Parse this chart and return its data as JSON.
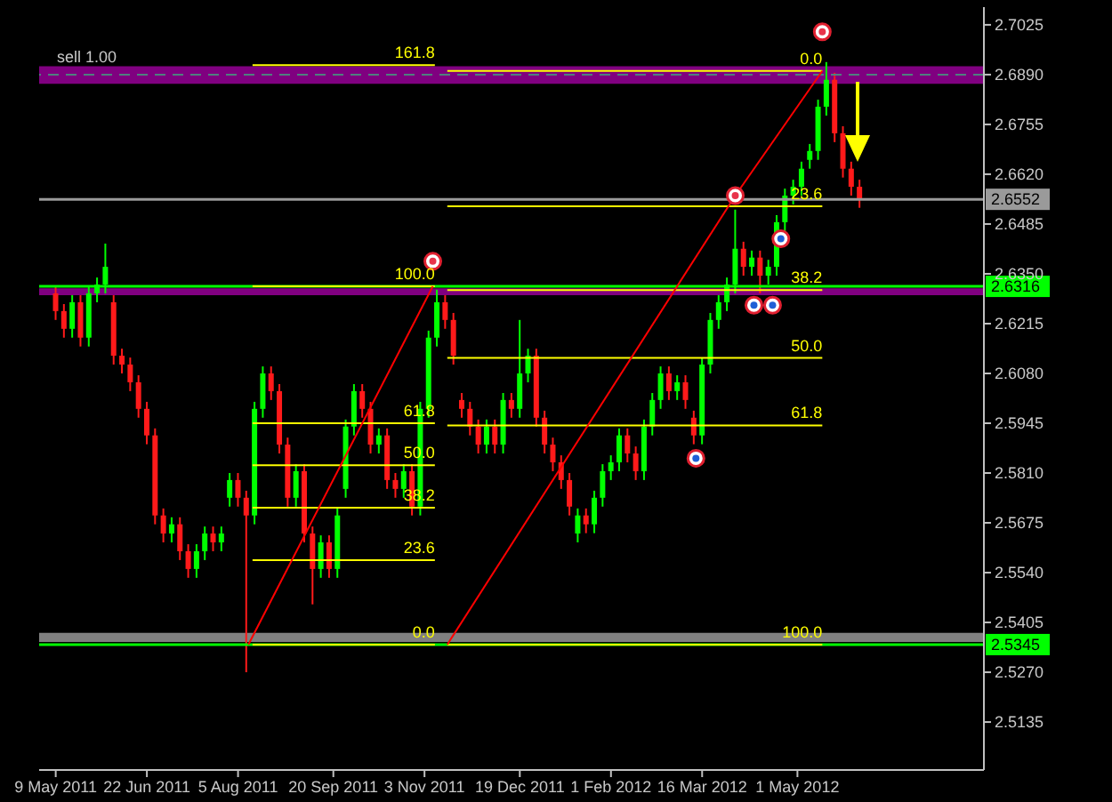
{
  "chart_data": {
    "type": "candlestick",
    "grid": false,
    "legend": false,
    "x": [
      "2011-05-09",
      "2011-05-13",
      "2011-05-17",
      "2011-05-21",
      "2011-05-25",
      "2011-05-29",
      "2011-06-02",
      "2011-06-06",
      "2011-06-10",
      "2011-06-14",
      "2011-06-18",
      "2011-06-22",
      "2011-06-26",
      "2011-06-30",
      "2011-07-04",
      "2011-07-08",
      "2011-07-12",
      "2011-07-16",
      "2011-07-20",
      "2011-07-24",
      "2011-07-28",
      "2011-08-01",
      "2011-08-05",
      "2011-08-09",
      "2011-08-13",
      "2011-08-17",
      "2011-08-21",
      "2011-08-25",
      "2011-08-29",
      "2011-09-02",
      "2011-09-06",
      "2011-09-10",
      "2011-09-14",
      "2011-09-18",
      "2011-09-22",
      "2011-09-26",
      "2011-09-30",
      "2011-10-04",
      "2011-10-08",
      "2011-10-12",
      "2011-10-16",
      "2011-10-20",
      "2011-10-24",
      "2011-10-28",
      "2011-11-01",
      "2011-11-05",
      "2011-11-09",
      "2011-11-13",
      "2011-11-17",
      "2011-11-21",
      "2011-11-25",
      "2011-11-29",
      "2011-12-03",
      "2011-12-07",
      "2011-12-11",
      "2011-12-15",
      "2011-12-19",
      "2011-12-23",
      "2011-12-27",
      "2011-12-31",
      "2012-01-04",
      "2012-01-08",
      "2012-01-12",
      "2012-01-16",
      "2012-01-20",
      "2012-01-24",
      "2012-01-28",
      "2012-02-01",
      "2012-02-05",
      "2012-02-09",
      "2012-02-13",
      "2012-02-17",
      "2012-02-21",
      "2012-02-25",
      "2012-02-29",
      "2012-03-04",
      "2012-03-08",
      "2012-03-12",
      "2012-03-16",
      "2012-03-20",
      "2012-03-24",
      "2012-03-28",
      "2012-04-01",
      "2012-04-05",
      "2012-04-09",
      "2012-04-13",
      "2012-04-17",
      "2012-04-21",
      "2012-04-25",
      "2012-04-29",
      "2012-05-03",
      "2012-05-07",
      "2012-05-11",
      "2012-05-15",
      "2012-05-19",
      "2012-05-23",
      "2012-05-27",
      "2012-05-31"
    ],
    "ohlc": [
      [
        2.6297,
        2.6316,
        2.6225,
        2.6249
      ],
      [
        2.6249,
        2.6268,
        2.6177,
        2.6201
      ],
      [
        2.6201,
        2.6292,
        2.6177,
        2.6273
      ],
      [
        2.6273,
        2.6292,
        2.6153,
        2.6177
      ],
      [
        2.6177,
        2.6316,
        2.6153,
        2.6297
      ],
      [
        2.6297,
        2.634,
        2.6273,
        2.6321
      ],
      [
        2.6321,
        2.6432,
        2.6297,
        2.6369
      ],
      [
        2.6273,
        2.6292,
        2.6104,
        2.6128
      ],
      [
        2.6128,
        2.6147,
        2.608,
        2.6104
      ],
      [
        2.6104,
        2.6123,
        2.6032,
        2.6056
      ],
      [
        2.6056,
        2.6075,
        2.596,
        2.5984
      ],
      [
        2.5984,
        2.6003,
        2.5888,
        2.5912
      ],
      [
        2.5912,
        2.5931,
        2.5671,
        2.5695
      ],
      [
        2.5695,
        2.5714,
        2.5622,
        2.5646
      ],
      [
        2.5646,
        2.569,
        2.5622,
        2.5671
      ],
      [
        2.5671,
        2.569,
        2.5574,
        2.5598
      ],
      [
        2.5598,
        2.5617,
        2.5526,
        2.555
      ],
      [
        2.555,
        2.5617,
        2.5526,
        2.5598
      ],
      [
        2.5598,
        2.5665,
        2.5574,
        2.5646
      ],
      [
        2.5646,
        2.5665,
        2.5598,
        2.5622
      ],
      [
        2.5622,
        2.5665,
        2.5598,
        2.5646
      ],
      [
        2.5743,
        2.581,
        2.5719,
        2.5791
      ],
      [
        2.5791,
        2.581,
        2.5719,
        2.5743
      ],
      [
        2.5743,
        2.5762,
        2.527,
        2.5695
      ],
      [
        2.5695,
        2.6003,
        2.5671,
        2.5984
      ],
      [
        2.5984,
        2.6099,
        2.596,
        2.608
      ],
      [
        2.608,
        2.6099,
        2.6008,
        2.6032
      ],
      [
        2.6032,
        2.6051,
        2.5863,
        2.5887
      ],
      [
        2.5887,
        2.5906,
        2.5719,
        2.5743
      ],
      [
        2.5743,
        2.5834,
        2.5719,
        2.5815
      ],
      [
        2.5815,
        2.5834,
        2.5622,
        2.5646
      ],
      [
        2.5646,
        2.5665,
        2.5454,
        2.555
      ],
      [
        2.555,
        2.5641,
        2.5526,
        2.5622
      ],
      [
        2.5622,
        2.5641,
        2.5526,
        2.555
      ],
      [
        2.555,
        2.5714,
        2.5526,
        2.5695
      ],
      [
        2.5767,
        2.5955,
        2.5743,
        2.5936
      ],
      [
        2.5936,
        2.6051,
        2.5912,
        2.6032
      ],
      [
        2.6032,
        2.6051,
        2.596,
        2.5984
      ],
      [
        2.5984,
        2.6003,
        2.5863,
        2.5887
      ],
      [
        2.5887,
        2.5931,
        2.5863,
        2.5912
      ],
      [
        2.5912,
        2.5931,
        2.5767,
        2.5791
      ],
      [
        2.5791,
        2.581,
        2.5743,
        2.5767
      ],
      [
        2.5767,
        2.5834,
        2.5743,
        2.5815
      ],
      [
        2.5815,
        2.5834,
        2.5695,
        2.5719
      ],
      [
        2.5719,
        2.6003,
        2.5695,
        2.5984
      ],
      [
        2.5984,
        2.6196,
        2.596,
        2.6177
      ],
      [
        2.6177,
        2.6307,
        2.6153,
        2.6273
      ],
      [
        2.6273,
        2.6292,
        2.6201,
        2.6225
      ],
      [
        2.6225,
        2.6244,
        2.6104,
        2.6128
      ],
      [
        2.6008,
        2.6027,
        2.596,
        2.5984
      ],
      [
        2.5984,
        2.6003,
        2.5912,
        2.5936
      ],
      [
        2.5936,
        2.5955,
        2.5863,
        2.5887
      ],
      [
        2.5887,
        2.5955,
        2.5863,
        2.5936
      ],
      [
        2.5936,
        2.5955,
        2.5863,
        2.5887
      ],
      [
        2.5887,
        2.6027,
        2.5863,
        2.6008
      ],
      [
        2.6008,
        2.6027,
        2.596,
        2.5984
      ],
      [
        2.5984,
        2.6225,
        2.596,
        2.608
      ],
      [
        2.608,
        2.6147,
        2.6056,
        2.6128
      ],
      [
        2.6128,
        2.6147,
        2.5936,
        2.596
      ],
      [
        2.596,
        2.5979,
        2.5863,
        2.5887
      ],
      [
        2.5887,
        2.5906,
        2.5815,
        2.5839
      ],
      [
        2.5839,
        2.5858,
        2.5767,
        2.5791
      ],
      [
        2.5791,
        2.581,
        2.5695,
        2.5719
      ],
      [
        2.5646,
        2.5714,
        2.5622,
        2.5695
      ],
      [
        2.5695,
        2.5714,
        2.5647,
        2.5671
      ],
      [
        2.5671,
        2.5762,
        2.5647,
        2.5743
      ],
      [
        2.5743,
        2.5834,
        2.5719,
        2.5815
      ],
      [
        2.5815,
        2.5858,
        2.5791,
        2.5839
      ],
      [
        2.5839,
        2.5931,
        2.5815,
        2.5912
      ],
      [
        2.5912,
        2.5931,
        2.5839,
        2.5863
      ],
      [
        2.5863,
        2.5882,
        2.5791,
        2.5815
      ],
      [
        2.5815,
        2.5955,
        2.5791,
        2.5936
      ],
      [
        2.5936,
        2.6027,
        2.5912,
        2.6008
      ],
      [
        2.6008,
        2.6099,
        2.5984,
        2.608
      ],
      [
        2.608,
        2.6099,
        2.6008,
        2.6032
      ],
      [
        2.6032,
        2.6075,
        2.6008,
        2.6056
      ],
      [
        2.6056,
        2.6075,
        2.5984,
        2.6008
      ],
      [
        2.596,
        2.5979,
        2.5888,
        2.5912
      ],
      [
        2.5912,
        2.6123,
        2.5888,
        2.6104
      ],
      [
        2.6104,
        2.6244,
        2.608,
        2.6225
      ],
      [
        2.6225,
        2.6292,
        2.6201,
        2.6273
      ],
      [
        2.6273,
        2.634,
        2.6249,
        2.6321
      ],
      [
        2.6321,
        2.6524,
        2.6297,
        2.6418
      ],
      [
        2.6418,
        2.6437,
        2.6345,
        2.6369
      ],
      [
        2.6369,
        2.6413,
        2.6345,
        2.6394
      ],
      [
        2.6394,
        2.6413,
        2.6297,
        2.6345
      ],
      [
        2.6345,
        2.6388,
        2.6321,
        2.6369
      ],
      [
        2.6369,
        2.6509,
        2.6345,
        2.649
      ],
      [
        2.649,
        2.6581,
        2.6466,
        2.6562
      ],
      [
        2.6562,
        2.6605,
        2.6538,
        2.6586
      ],
      [
        2.6586,
        2.6654,
        2.6562,
        2.6635
      ],
      [
        2.6659,
        2.6702,
        2.6635,
        2.6683
      ],
      [
        2.6683,
        2.6822,
        2.6659,
        2.6803
      ],
      [
        2.6803,
        2.6924,
        2.6779,
        2.6876
      ],
      [
        2.6876,
        2.6895,
        2.6707,
        2.6731
      ],
      [
        2.6731,
        2.675,
        2.6611,
        2.6635
      ],
      [
        2.6635,
        2.6654,
        2.6562,
        2.6586
      ],
      [
        2.6586,
        2.6605,
        2.6529,
        2.6553
      ]
    ],
    "xlim": [
      "2011-05-01",
      "2012-07-30"
    ],
    "xticks": [
      {
        "value": "2011-05-09",
        "label": "9 May 2011"
      },
      {
        "value": "2011-06-22",
        "label": "22 Jun 2011"
      },
      {
        "value": "2011-08-05",
        "label": "5 Aug 2011"
      },
      {
        "value": "2011-09-20",
        "label": "20 Sep 2011"
      },
      {
        "value": "2011-11-03",
        "label": "3 Nov 2011"
      },
      {
        "value": "2011-12-19",
        "label": "19 Dec 2011"
      },
      {
        "value": "2012-02-01",
        "label": "1 Feb 2012"
      },
      {
        "value": "2012-03-16",
        "label": "16 Mar 2012"
      },
      {
        "value": "2012-05-01",
        "label": "1 May 2012"
      }
    ],
    "ylim": [
      2.5005,
      2.7073
    ],
    "yticks": [
      2.5135,
      {
        "value": 2.527,
        "label": "2.5270"
      },
      2.5405,
      {
        "value": 2.554,
        "label": "2.5540"
      },
      2.5675,
      {
        "value": 2.581,
        "label": "2.5810"
      },
      2.5945,
      {
        "value": 2.608,
        "label": "2.6080"
      },
      2.6215,
      {
        "value": 2.635,
        "label": "2.6350"
      },
      2.6485,
      {
        "value": 2.662,
        "label": "2.6620"
      },
      2.6755,
      {
        "value": 2.689,
        "label": "2.6890"
      },
      2.7025
    ],
    "bands": [
      {
        "axis": "y",
        "from": 2.6865,
        "to": 2.6913,
        "color": "#800080"
      },
      {
        "axis": "y",
        "from": 2.6292,
        "to": 2.6311,
        "color": "#800080"
      },
      {
        "axis": "y",
        "from": 2.5352,
        "to": 2.5377,
        "color": "#808080"
      }
    ],
    "ref_lines": [
      {
        "axis": "y",
        "value": 2.689,
        "label": "sell 1.00",
        "color": "#4f7f7f",
        "line_style": "dashed"
      },
      {
        "axis": "y",
        "value": 2.6552,
        "label": "2.6552",
        "color": "#9a9a9a",
        "line_style": "solid"
      },
      {
        "axis": "y",
        "value": 2.6316,
        "label": "2.6316",
        "color": "#00ff00",
        "line_style": "solid"
      },
      {
        "axis": "y",
        "value": 2.5345,
        "label": "2.5345",
        "color": "#00ff00",
        "line_style": "solid"
      }
    ],
    "series": [
      {
        "type": "line",
        "color": "#ffff00",
        "x": [
          "2011-08-12",
          "2011-11-08"
        ],
        "values": [
          2.6916,
          2.6916
        ]
      },
      {
        "type": "line",
        "color": "#ffff00",
        "x": [
          "2011-08-12",
          "2011-11-08"
        ],
        "values": [
          2.6316,
          2.6316
        ]
      },
      {
        "type": "line",
        "color": "#ffff00",
        "x": [
          "2011-08-12",
          "2011-11-08"
        ],
        "values": [
          2.5945,
          2.5945
        ]
      },
      {
        "type": "line",
        "color": "#ffff00",
        "x": [
          "2011-08-12",
          "2011-11-08"
        ],
        "values": [
          2.5831,
          2.5831
        ]
      },
      {
        "type": "line",
        "color": "#ffff00",
        "x": [
          "2011-08-12",
          "2011-11-08"
        ],
        "values": [
          2.5716,
          2.5716
        ]
      },
      {
        "type": "line",
        "color": "#ffff00",
        "x": [
          "2011-08-12",
          "2011-11-08"
        ],
        "values": [
          2.5574,
          2.5574
        ]
      },
      {
        "type": "line",
        "color": "#ffff00",
        "x": [
          "2011-08-12",
          "2011-11-08"
        ],
        "values": [
          2.5345,
          2.5345
        ]
      },
      {
        "type": "line",
        "color": "#ffff00",
        "x": [
          "2011-11-14",
          "2012-05-13"
        ],
        "values": [
          2.69,
          2.69
        ]
      },
      {
        "type": "line",
        "color": "#ffff00",
        "x": [
          "2011-11-14",
          "2012-05-13"
        ],
        "values": [
          2.6533,
          2.6533
        ]
      },
      {
        "type": "line",
        "color": "#ffff00",
        "x": [
          "2011-11-14",
          "2012-05-13"
        ],
        "values": [
          2.6306,
          2.6306
        ]
      },
      {
        "type": "line",
        "color": "#ffff00",
        "x": [
          "2011-11-14",
          "2012-05-13"
        ],
        "values": [
          2.6122,
          2.6122
        ]
      },
      {
        "type": "line",
        "color": "#ffff00",
        "x": [
          "2011-11-14",
          "2012-05-13"
        ],
        "values": [
          2.5939,
          2.5939
        ]
      },
      {
        "type": "line",
        "color": "#ffff00",
        "x": [
          "2011-11-14",
          "2012-05-13"
        ],
        "values": [
          2.5345,
          2.5345
        ]
      },
      {
        "type": "line",
        "color": "#ff0000",
        "x": [
          "2011-08-10",
          "2011-11-07"
        ],
        "values": [
          2.5345,
          2.6316
        ]
      },
      {
        "type": "line",
        "color": "#ff0000",
        "x": [
          "2011-11-14",
          "2012-04-01"
        ],
        "values": [
          2.5345,
          2.6562
        ]
      },
      {
        "type": "line",
        "color": "#ff0000",
        "x": [
          "2012-04-01",
          "2012-05-13"
        ],
        "values": [
          2.6562,
          2.69
        ]
      },
      {
        "type": "scatter",
        "color": "#e8334a",
        "marker": "circle",
        "x": [
          "2011-11-07",
          "2012-04-01",
          "2012-05-13"
        ],
        "values": [
          2.6384,
          2.6562,
          2.7006
        ]
      },
      {
        "type": "scatter",
        "color": "#1f5fd6",
        "marker": "circle",
        "x": [
          "2012-03-13",
          "2012-04-10",
          "2012-04-19",
          "2012-04-23"
        ],
        "values": [
          2.585,
          2.6265,
          2.6265,
          2.6445
        ]
      }
    ],
    "annotations": [
      {
        "text": "161.8",
        "x": "2011-11-08",
        "y": 2.6916
      },
      {
        "text": "100.0",
        "x": "2011-11-08",
        "y": 2.6316
      },
      {
        "text": "61.8",
        "x": "2011-11-08",
        "y": 2.5945
      },
      {
        "text": "50.0",
        "x": "2011-11-08",
        "y": 2.5831
      },
      {
        "text": "38.2",
        "x": "2011-11-08",
        "y": 2.5716
      },
      {
        "text": "23.6",
        "x": "2011-11-08",
        "y": 2.5574
      },
      {
        "text": "0.0",
        "x": "2011-11-08",
        "y": 2.5345
      },
      {
        "text": "0.0",
        "x": "2012-05-13",
        "y": 2.69
      },
      {
        "text": "23.6",
        "x": "2012-05-13",
        "y": 2.6533
      },
      {
        "text": "38.2",
        "x": "2012-05-13",
        "y": 2.6306
      },
      {
        "text": "50.0",
        "x": "2012-05-13",
        "y": 2.6122
      },
      {
        "text": "61.8",
        "x": "2012-05-13",
        "y": 2.5939
      },
      {
        "text": "100.0",
        "x": "2012-05-13",
        "y": 2.5345
      }
    ]
  }
}
